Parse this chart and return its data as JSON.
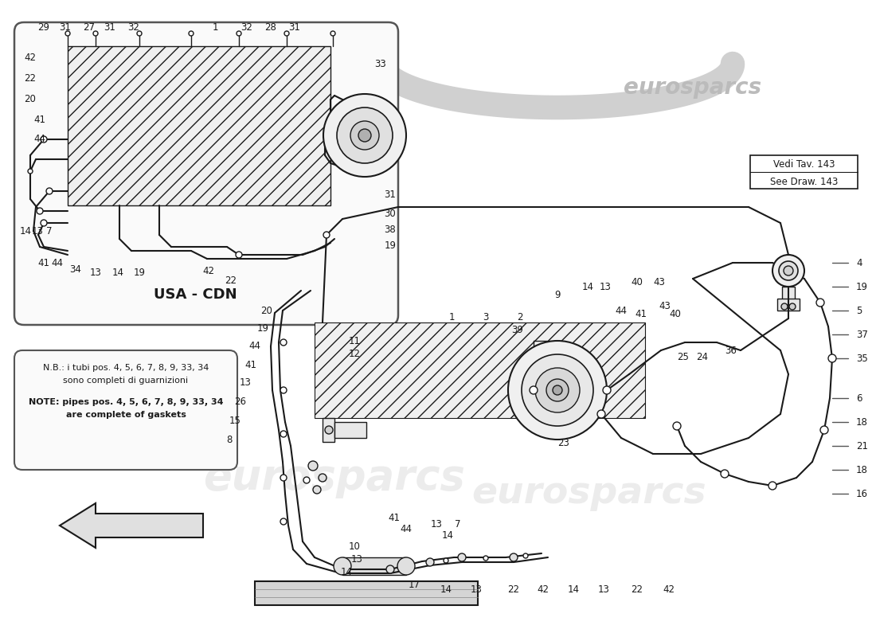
{
  "bg_color": "#ffffff",
  "line_color": "#1a1a1a",
  "label_color": "#1a1a1a",
  "watermark_color": "#d5d5d5",
  "usa_cdn_label": "USA - CDN",
  "vedi_text": "Vedi Tav. 143",
  "see_draw_text": "See Draw. 143",
  "note_line1": "N.B.: i tubi pos. 4, 5, 6, 7, 8, 9, 33, 34",
  "note_line2": "sono completi di guarnizioni",
  "note_line3": "NOTE: pipes pos. 4, 5, 6, 7, 8, 9, 33, 34",
  "note_line4": "are complete of gaskets",
  "eurosparcs": "eurosparcs",
  "font_size": 8.5,
  "lw_pipe": 1.5,
  "lw_thin": 1.0,
  "lw_thick": 2.0
}
